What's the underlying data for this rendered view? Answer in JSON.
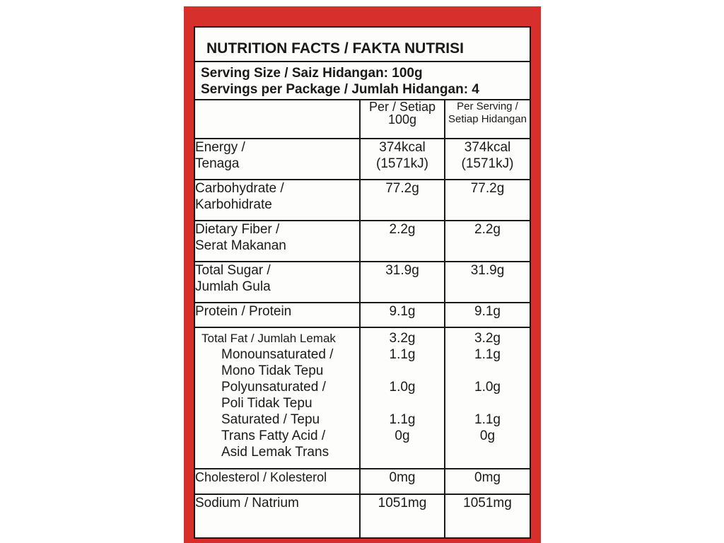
{
  "title": "NUTRITION FACTS / FAKTA NUTRISI",
  "serving_size": "Serving Size / Saiz Hidangan: 100g",
  "servings_per_package": "Servings per Package / Jumlah Hidangan: 4",
  "column_headers": {
    "per100_line1": "Per / Setiap",
    "per100_line2": "100g",
    "perserving_line1": "Per Serving /",
    "perserving_line2": "Setiap Hidangan"
  },
  "rows": {
    "energy": {
      "name_line1": "Energy /",
      "name_line2": "Tenaga",
      "per100_line1": "374kcal",
      "per100_line2": "(1571kJ)",
      "serving_line1": "374kcal",
      "serving_line2": "(1571kJ)"
    },
    "carbohydrate": {
      "name_line1": "Carbohydrate /",
      "name_line2": "Karbohidrate",
      "per100": "77.2g",
      "serving": "77.2g"
    },
    "fiber": {
      "name_line1": "Dietary Fiber /",
      "name_line2": "Serat Makanan",
      "per100": "2.2g",
      "serving": "2.2g"
    },
    "sugar": {
      "name_line1": "Total Sugar /",
      "name_line2": "Jumlah Gula",
      "per100": "31.9g",
      "serving": "31.9g"
    },
    "protein": {
      "name": "Protein / Protein",
      "per100": "9.1g",
      "serving": "9.1g"
    },
    "fat": {
      "name": "Total Fat / Jumlah Lemak",
      "per100": "3.2g",
      "serving": "3.2g",
      "mono": {
        "line1": "Monounsaturated /",
        "line2": "Mono Tidak Tepu",
        "per100": "1.1g",
        "serving": "1.1g"
      },
      "poly": {
        "line1": "Polyunsaturated /",
        "line2": "Poli Tidak Tepu",
        "per100": "1.0g",
        "serving": "1.0g"
      },
      "saturated": {
        "line1": "Saturated / Tepu",
        "per100": "1.1g",
        "serving": "1.1g"
      },
      "trans": {
        "line1": "Trans Fatty Acid /",
        "line2": "Asid Lemak Trans",
        "per100": "0g",
        "serving": "0g"
      }
    },
    "cholesterol": {
      "name": "Cholesterol / Kolesterol",
      "per100": "0mg",
      "serving": "0mg"
    },
    "sodium": {
      "name": "Sodium / Natrium",
      "per100": "1051mg",
      "serving": "1051mg"
    }
  },
  "colors": {
    "package_red": "#d7302c",
    "label_bg": "#fdfdfb",
    "ink": "#1a1a1a"
  }
}
